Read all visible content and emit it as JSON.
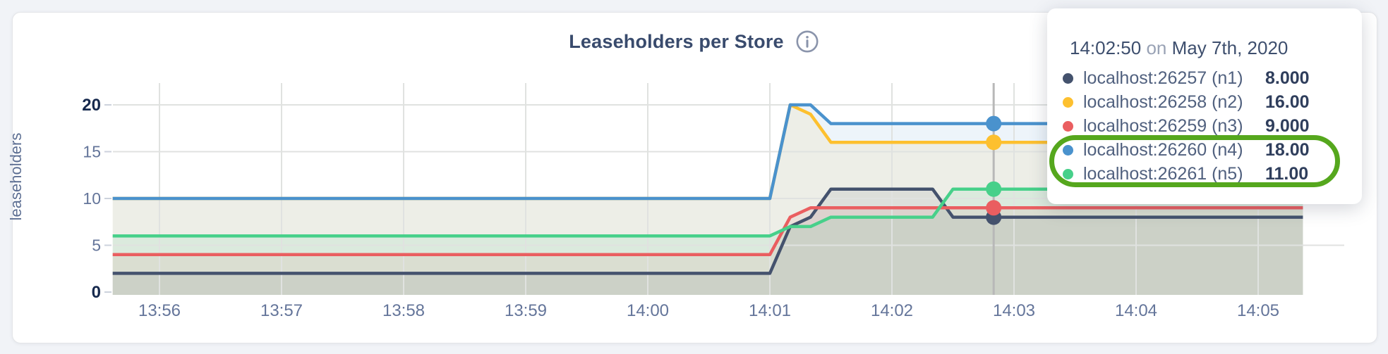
{
  "header": {
    "title": "Leaseholders per Store",
    "info_icon": "info-circle"
  },
  "chart_data": {
    "type": "line",
    "title": "Leaseholders per Store",
    "xlabel": "",
    "ylabel": "leaseholders",
    "ylim": [
      0,
      20
    ],
    "y_ticks": [
      0,
      5,
      10,
      15,
      20
    ],
    "y_ticks_emphasized": [
      0,
      20
    ],
    "x_ticks": [
      "13:56",
      "13:57",
      "13:58",
      "13:59",
      "14:00",
      "14:01",
      "14:02",
      "14:03",
      "14:04",
      "14:05"
    ],
    "x_domain": [
      "13:55:37",
      "14:05:22"
    ],
    "grid": true,
    "legend_position": "tooltip",
    "area_fill_opacity": 0.1,
    "grid_color": "#e0e2e0",
    "hover_line_color": "#b8b8b8",
    "series": [
      {
        "name": "localhost:26257 (n1)",
        "color": "#44526d",
        "points": [
          [
            "13:55:37",
            2
          ],
          [
            "14:01:00",
            2
          ],
          [
            "14:01:10",
            7
          ],
          [
            "14:01:20",
            8
          ],
          [
            "14:01:30",
            11
          ],
          [
            "14:02:20",
            11
          ],
          [
            "14:02:30",
            8
          ],
          [
            "14:05:22",
            8
          ]
        ]
      },
      {
        "name": "localhost:26258 (n2)",
        "color": "#fdc02f",
        "points": [
          [
            "13:55:37",
            10
          ],
          [
            "14:01:00",
            10
          ],
          [
            "14:01:10",
            20
          ],
          [
            "14:01:20",
            19
          ],
          [
            "14:01:30",
            16
          ],
          [
            "14:05:22",
            16
          ]
        ]
      },
      {
        "name": "localhost:26259 (n3)",
        "color": "#ea5e60",
        "points": [
          [
            "13:55:37",
            4
          ],
          [
            "14:01:00",
            4
          ],
          [
            "14:01:10",
            8
          ],
          [
            "14:01:20",
            9
          ],
          [
            "14:05:22",
            9
          ]
        ]
      },
      {
        "name": "localhost:26260 (n4)",
        "color": "#4a92cd",
        "points": [
          [
            "13:55:37",
            10
          ],
          [
            "14:01:00",
            10
          ],
          [
            "14:01:10",
            20
          ],
          [
            "14:01:20",
            20
          ],
          [
            "14:01:30",
            18
          ],
          [
            "14:05:22",
            18
          ]
        ]
      },
      {
        "name": "localhost:26261 (n5)",
        "color": "#47d08a",
        "points": [
          [
            "13:55:37",
            6
          ],
          [
            "14:01:00",
            6
          ],
          [
            "14:01:10",
            7
          ],
          [
            "14:01:20",
            7
          ],
          [
            "14:01:30",
            8
          ],
          [
            "14:02:20",
            8
          ],
          [
            "14:02:30",
            11
          ],
          [
            "14:05:22",
            11
          ]
        ]
      }
    ],
    "hover": {
      "time": "14:02:50",
      "values": [
        8,
        16,
        9,
        18,
        11
      ]
    }
  },
  "tooltip": {
    "time": "14:02:50",
    "connector": "on",
    "date": "May 7th, 2020",
    "rows": [
      {
        "label": "localhost:26257 (n1)",
        "value": "8.000",
        "color": "#44526d",
        "highlighted": false
      },
      {
        "label": "localhost:26258 (n2)",
        "value": "16.00",
        "color": "#fdc02f",
        "highlighted": false
      },
      {
        "label": "localhost:26259 (n3)",
        "value": "9.000",
        "color": "#ea5e60",
        "highlighted": false
      },
      {
        "label": "localhost:26260 (n4)",
        "value": "18.00",
        "color": "#4a92cd",
        "highlighted": true
      },
      {
        "label": "localhost:26261 (n5)",
        "value": "11.00",
        "color": "#47d08a",
        "highlighted": true
      }
    ],
    "annotation_color": "#55a71d"
  }
}
